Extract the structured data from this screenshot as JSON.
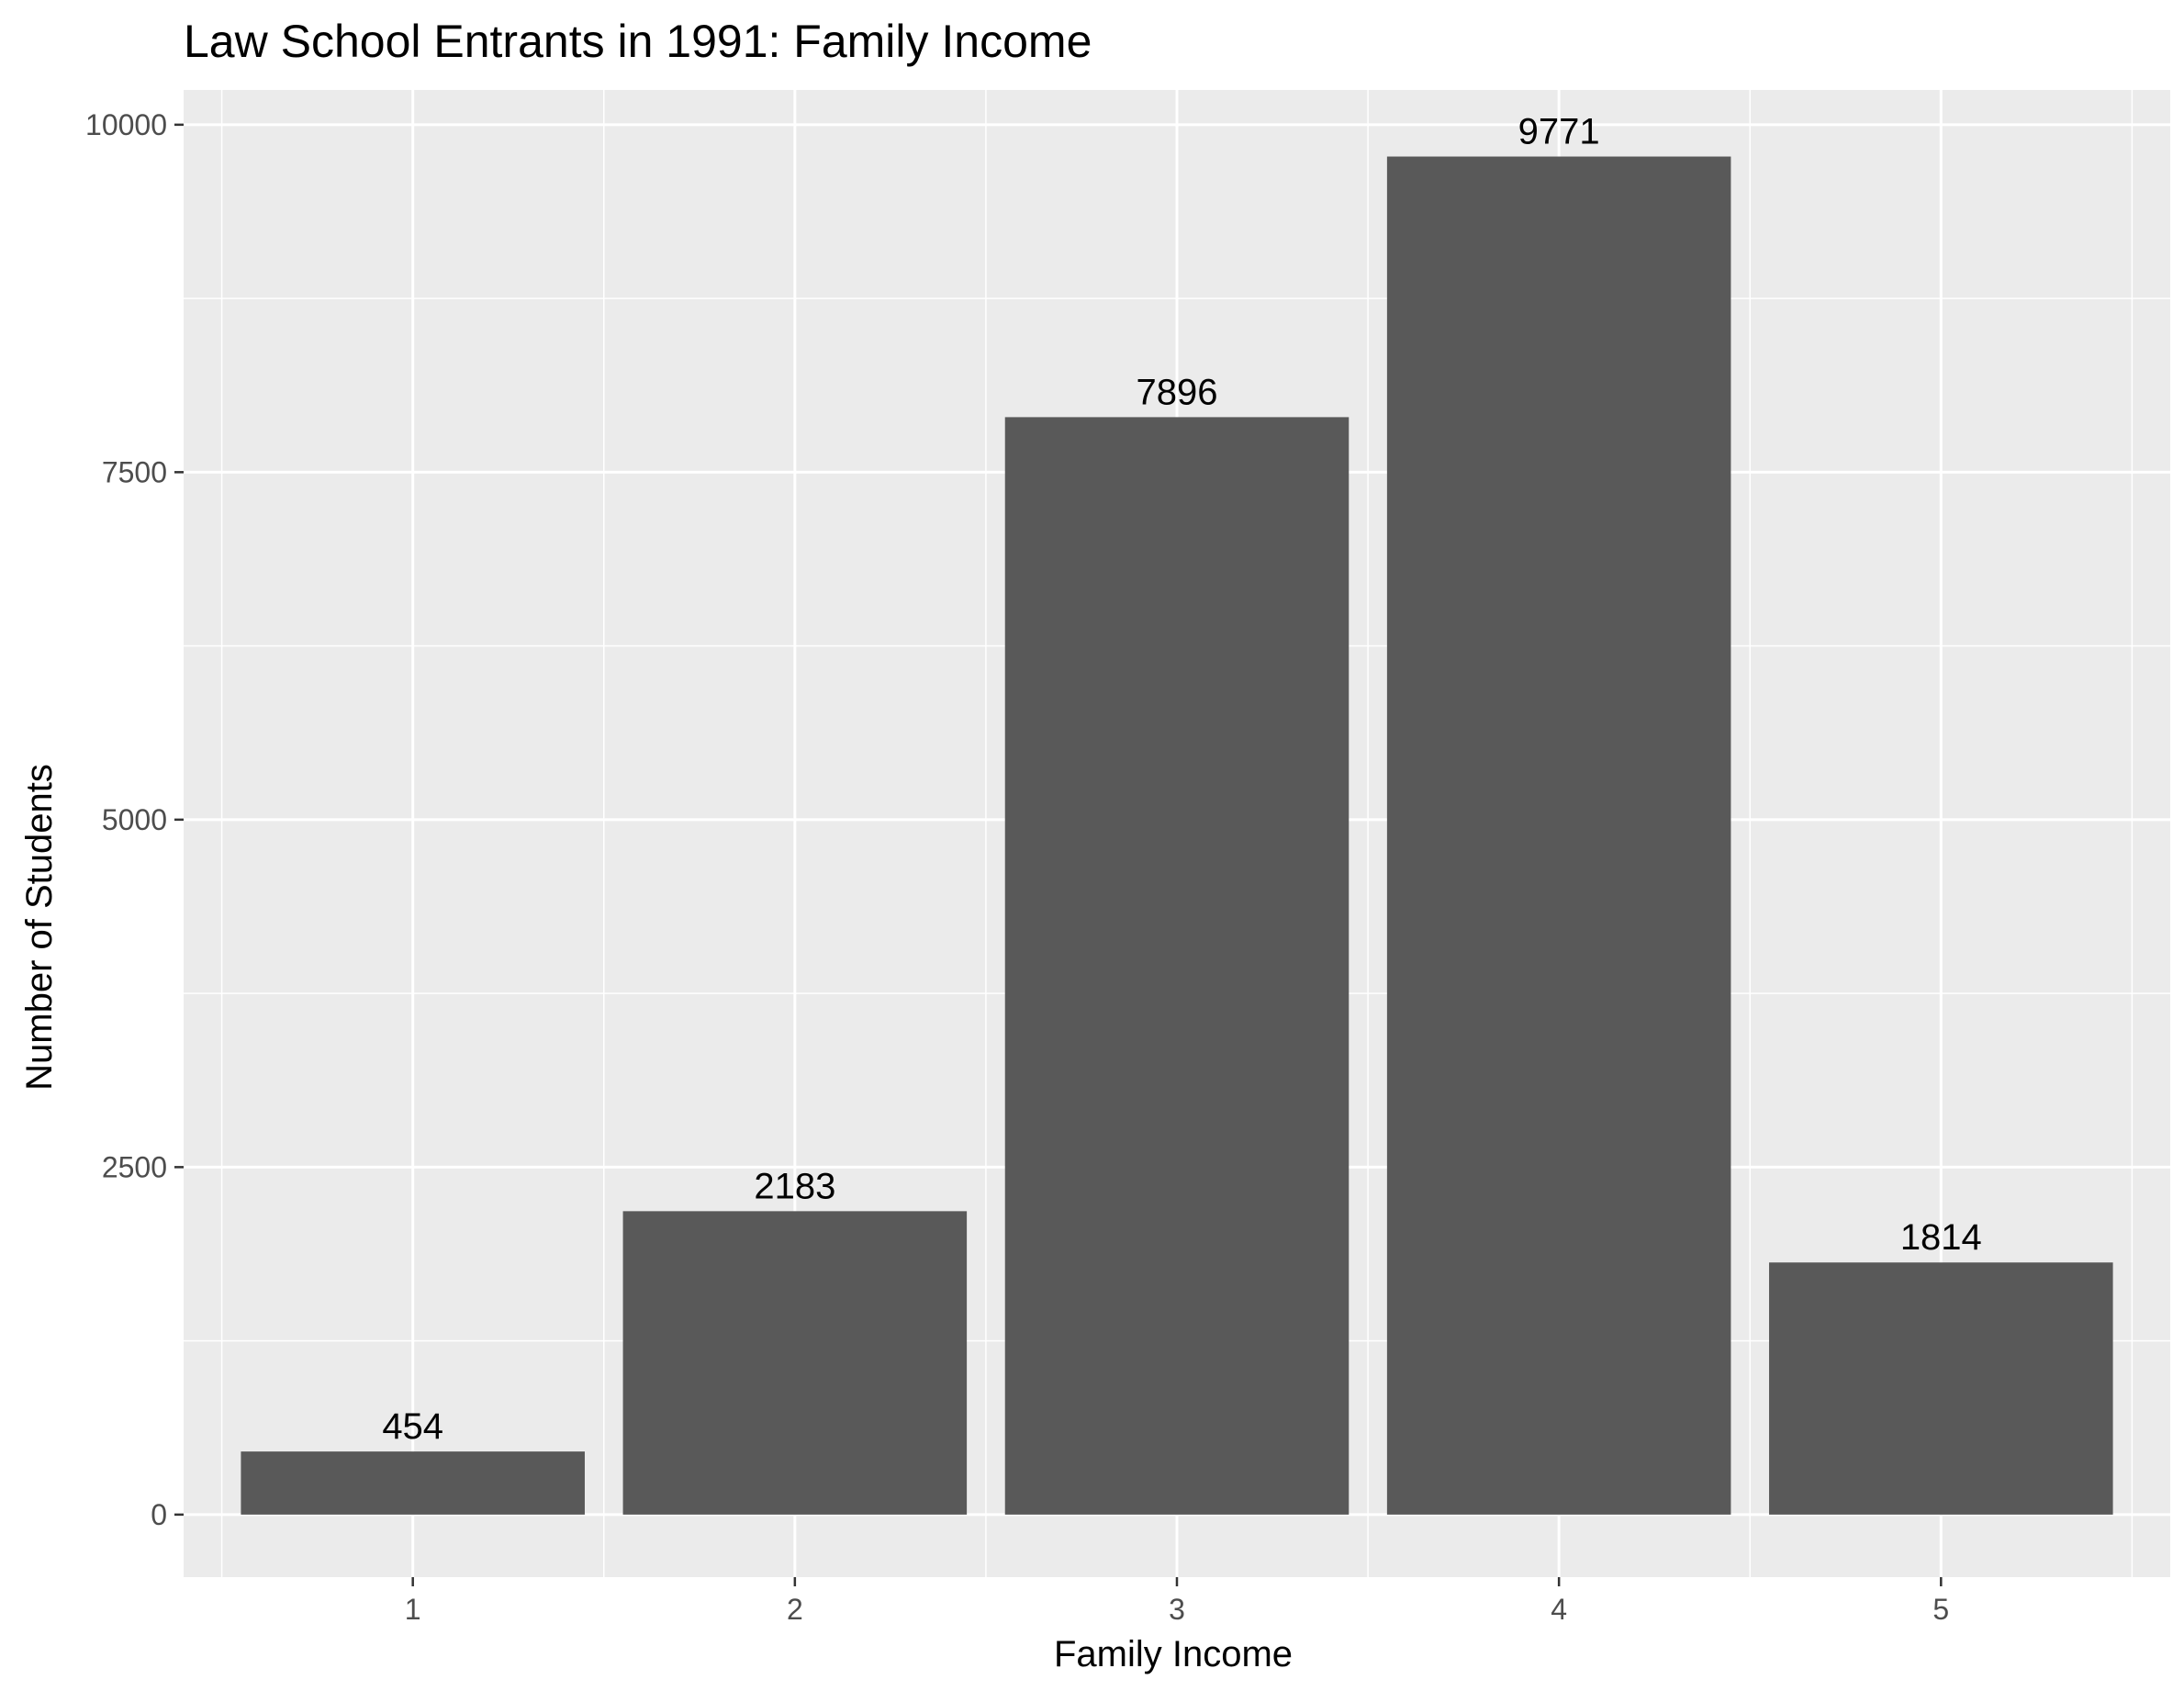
{
  "chart_data": {
    "type": "bar",
    "title": "Law School Entrants in 1991: Family Income",
    "xlabel": "Family Income",
    "ylabel": "Number of Students",
    "categories": [
      "1",
      "2",
      "3",
      "4",
      "5"
    ],
    "values": [
      454,
      2183,
      7896,
      9771,
      1814
    ],
    "data_labels": [
      "454",
      "2183",
      "7896",
      "9771",
      "1814"
    ],
    "ylim": [
      -450,
      10250
    ],
    "y_ticks": [
      0,
      2500,
      5000,
      7500,
      10000
    ],
    "y_tick_labels": [
      "0",
      "2500",
      "5000",
      "7500",
      "10000"
    ],
    "grid": true,
    "legend": "none",
    "colors": {
      "bar": "#595959",
      "panel": "#ebebeb",
      "grid": "#ffffff",
      "text": "#000000",
      "tick_text": "#4d4d4d"
    }
  }
}
